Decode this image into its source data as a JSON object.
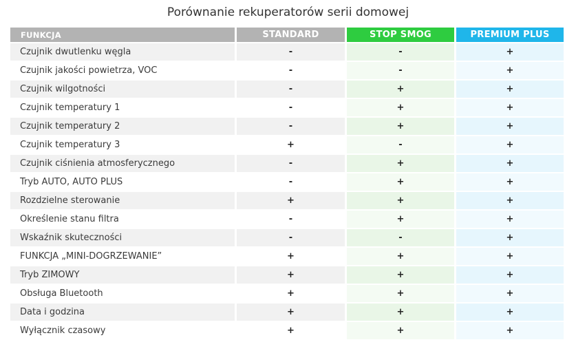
{
  "title": "Porównanie rekuperatorów serii domowej",
  "headers": {
    "function": "FUNKCJA",
    "standard": "STANDARD",
    "stop_smog": "STOP SMOG",
    "premium_plus": "PREMIUM PLUS"
  },
  "colors": {
    "header_grey": "#b3b3b3",
    "stop_smog_green": "#2ecc40",
    "premium_plus_blue": "#1fb6ea"
  },
  "rows": [
    {
      "label": "Czujnik dwutlenku węgla",
      "standard": "-",
      "stop_smog": "-",
      "premium_plus": "+"
    },
    {
      "label": "Czujnik jakości powietrza, VOC",
      "standard": "-",
      "stop_smog": "-",
      "premium_plus": "+"
    },
    {
      "label": "Czujnik wilgotności",
      "standard": "-",
      "stop_smog": "+",
      "premium_plus": "+"
    },
    {
      "label": "Czujnik temperatury 1",
      "standard": "-",
      "stop_smog": "+",
      "premium_plus": "+"
    },
    {
      "label": "Czujnik temperatury 2",
      "standard": "-",
      "stop_smog": "+",
      "premium_plus": "+"
    },
    {
      "label": "Czujnik temperatury 3",
      "standard": "+",
      "stop_smog": "-",
      "premium_plus": "+"
    },
    {
      "label": "Czujnik ciśnienia atmosferycznego",
      "standard": "-",
      "stop_smog": "+",
      "premium_plus": "+"
    },
    {
      "label": "Tryb AUTO, AUTO PLUS",
      "standard": "-",
      "stop_smog": "+",
      "premium_plus": "+"
    },
    {
      "label": "Rozdzielne sterowanie",
      "standard": "+",
      "stop_smog": "+",
      "premium_plus": "+"
    },
    {
      "label": "Określenie stanu filtra",
      "standard": "-",
      "stop_smog": "+",
      "premium_plus": "+"
    },
    {
      "label": "Wskaźnik skuteczności",
      "standard": "-",
      "stop_smog": "-",
      "premium_plus": "+"
    },
    {
      "label": "FUNKCJA „MINI-DOGRZEWANIE”",
      "standard": "+",
      "stop_smog": "+",
      "premium_plus": "+"
    },
    {
      "label": "Tryb ZIMOWY",
      "standard": "+",
      "stop_smog": "+",
      "premium_plus": "+"
    },
    {
      "label": "Obsługa Bluetooth",
      "standard": "+",
      "stop_smog": "+",
      "premium_plus": "+"
    },
    {
      "label": "Data i godzina",
      "standard": "+",
      "stop_smog": "+",
      "premium_plus": "+"
    },
    {
      "label": "Wyłącznik czasowy",
      "standard": "+",
      "stop_smog": "+",
      "premium_plus": "+"
    }
  ]
}
